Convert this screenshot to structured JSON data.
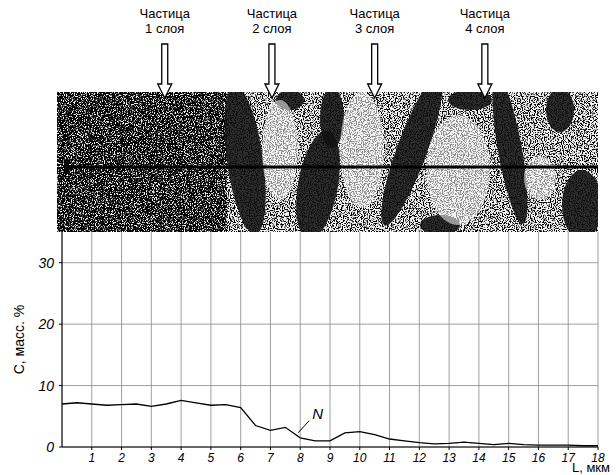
{
  "micrograph": {
    "arrows": [
      {
        "label": "Частица 1 слоя",
        "x": 3.45
      },
      {
        "label": "Частица 2 слоя",
        "x": 7.05
      },
      {
        "label": "Частица 3 слоя",
        "x": 10.5
      },
      {
        "label": "Частица 4 слоя",
        "x": 14.2
      }
    ]
  },
  "chart_data": {
    "type": "line",
    "x_label": "L, мкм",
    "y_label": "C, масс. %",
    "x": [
      0,
      0.5,
      1,
      1.5,
      2,
      2.5,
      3,
      3.5,
      4,
      4.5,
      5,
      5.5,
      6,
      6.5,
      7,
      7.5,
      8,
      8.5,
      9,
      9.5,
      10,
      10.5,
      11,
      11.5,
      12,
      12.5,
      13,
      13.5,
      14,
      14.5,
      15,
      15.5,
      16,
      16.5,
      17,
      17.5,
      18
    ],
    "series": [
      {
        "name": "N",
        "color": "#000000",
        "values": [
          7,
          7.2,
          7,
          6.8,
          6.9,
          7,
          6.6,
          7,
          7.6,
          7.2,
          6.8,
          6.9,
          6.4,
          3.5,
          2.7,
          3.2,
          1.5,
          1.0,
          1.0,
          2.3,
          2.5,
          2.0,
          1.3,
          1.0,
          0.7,
          0.5,
          0.6,
          0.8,
          0.6,
          0.4,
          0.6,
          0.4,
          0.3,
          0.3,
          0.3,
          0.2,
          0.2
        ]
      }
    ],
    "annotations": [
      {
        "text": "N",
        "x": 8.4,
        "y": 4.6
      }
    ],
    "xlim": [
      0,
      18
    ],
    "ylim": [
      0,
      35
    ],
    "xticks": [
      1,
      2,
      3,
      4,
      5,
      6,
      7,
      8,
      9,
      10,
      11,
      12,
      13,
      14,
      15,
      16,
      17,
      18
    ],
    "yticks": [
      0,
      10,
      20,
      30
    ],
    "grid": true
  }
}
